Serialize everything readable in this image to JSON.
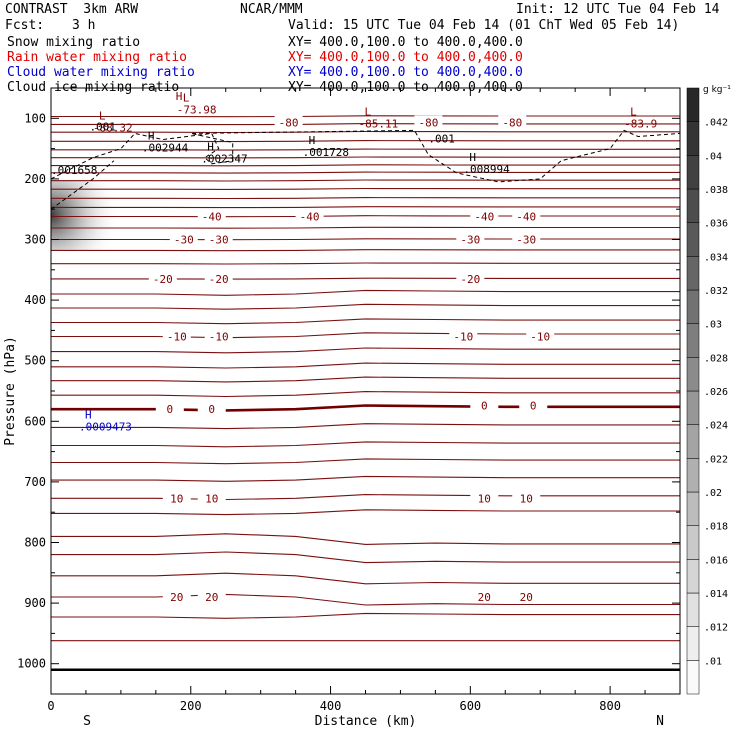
{
  "header": {
    "model": "CONTRAST  3km ARW",
    "center": "NCAR/MMM",
    "init": "Init: 12 UTC Tue 04 Feb 14",
    "fcst_label": "Fcst:",
    "fcst_value": "3 h",
    "valid": "Valid: 15 UTC Tue 04 Feb 14 (01 ChT Wed 05 Feb 14)",
    "fields": [
      {
        "name": "Snow mixing ratio",
        "xy": "XY= 400.0,100.0 to 400.0,400.0",
        "color": "#000000"
      },
      {
        "name": "Rain water mixing ratio",
        "xy": "XY= 400.0,100.0 to 400.0,400.0",
        "color": "#e00000"
      },
      {
        "name": "Cloud water mixing ratio",
        "xy": "XY= 400.0,100.0 to 400.0,400.0",
        "color": "#0000cc"
      },
      {
        "name": "Cloud ice mixing ratio",
        "xy": "XY= 400.0,100.0 to 400.0,400.0",
        "color": "#000000"
      }
    ]
  },
  "chart_data": {
    "type": "cross-section",
    "xlabel": "Distance (km)",
    "ylabel": "Pressure (hPa)",
    "xlim": [
      0,
      900
    ],
    "xticks": [
      0,
      200,
      400,
      600,
      800
    ],
    "ylim": [
      50,
      1050
    ],
    "yticks": [
      100,
      200,
      300,
      400,
      500,
      600,
      700,
      800,
      900,
      1000
    ],
    "end_labels": {
      "left": "S",
      "right": "N"
    },
    "colorbar": {
      "unit": "g kg⁻¹",
      "ticks": [
        ".01",
        ".012",
        ".014",
        ".016",
        ".018",
        ".02",
        ".022",
        ".024",
        ".026",
        ".028",
        ".03",
        ".032",
        ".034",
        ".036",
        ".038",
        ".04",
        ".042"
      ]
    },
    "temperature_contours": [
      {
        "value": -80,
        "labels": [
          [
            340,
            -80
          ],
          [
            540,
            -80
          ],
          [
            660,
            -80
          ]
        ]
      },
      {
        "value": -40,
        "labels": [
          [
            230,
            -40
          ],
          [
            370,
            -40
          ],
          [
            620,
            -40
          ],
          [
            680,
            -40
          ]
        ]
      },
      {
        "value": -30,
        "labels": [
          [
            190,
            -30
          ],
          [
            240,
            -30
          ],
          [
            600,
            -30
          ],
          [
            680,
            -30
          ]
        ]
      },
      {
        "value": -20,
        "labels": [
          [
            160,
            -20
          ],
          [
            240,
            -20
          ],
          [
            600,
            -20
          ]
        ]
      },
      {
        "value": -10,
        "labels": [
          [
            180,
            -10
          ],
          [
            240,
            -10
          ],
          [
            590,
            -10
          ],
          [
            700,
            -10
          ]
        ]
      },
      {
        "value": 0,
        "labels": [
          [
            170,
            0
          ],
          [
            230,
            0
          ],
          [
            620,
            0
          ],
          [
            690,
            0
          ]
        ]
      },
      {
        "value": 10,
        "labels": [
          [
            180,
            10
          ],
          [
            230,
            10
          ],
          [
            620,
            10
          ],
          [
            680,
            10
          ]
        ]
      },
      {
        "value": 20,
        "labels": [
          [
            180,
            20
          ],
          [
            230,
            20
          ],
          [
            620,
            20
          ],
          [
            680,
            20
          ]
        ]
      }
    ],
    "extrema": [
      {
        "type": "H",
        "text": "",
        "x": 170,
        "p": 80,
        "color": "#800000"
      },
      {
        "type": "L",
        "text": "-73.98",
        "x": 180,
        "p": 82,
        "color": "#800000"
      },
      {
        "type": "L",
        "text": "-85.11",
        "x": 440,
        "p": 105,
        "color": "#800000"
      },
      {
        "type": "L",
        "text": "-83.9",
        "x": 820,
        "p": 105,
        "color": "#800000"
      },
      {
        "type": "L",
        "text": "-88.32",
        "x": 60,
        "p": 112,
        "color": "#800000"
      },
      {
        "type": "",
        "text": ".001",
        "x": 55,
        "p": 110,
        "color": "#000000"
      },
      {
        "type": "H",
        "text": ".002944",
        "x": 130,
        "p": 145,
        "color": "#000000"
      },
      {
        "type": "H",
        "text": ".002347",
        "x": 215,
        "p": 163,
        "color": "#000000"
      },
      {
        "type": "H",
        "text": ".001728",
        "x": 360,
        "p": 152,
        "color": "#000000"
      },
      {
        "type": "",
        "text": ".001",
        "x": 540,
        "p": 130,
        "color": "#000000"
      },
      {
        "type": "H",
        "text": ".008994",
        "x": 590,
        "p": 180,
        "color": "#000000"
      },
      {
        "type": "",
        "text": ".001658",
        "x": 0,
        "p": 182,
        "color": "#000000"
      },
      {
        "type": "H",
        "text": ".0009473",
        "x": 40,
        "p": 605,
        "color": "#0000cc"
      }
    ]
  }
}
